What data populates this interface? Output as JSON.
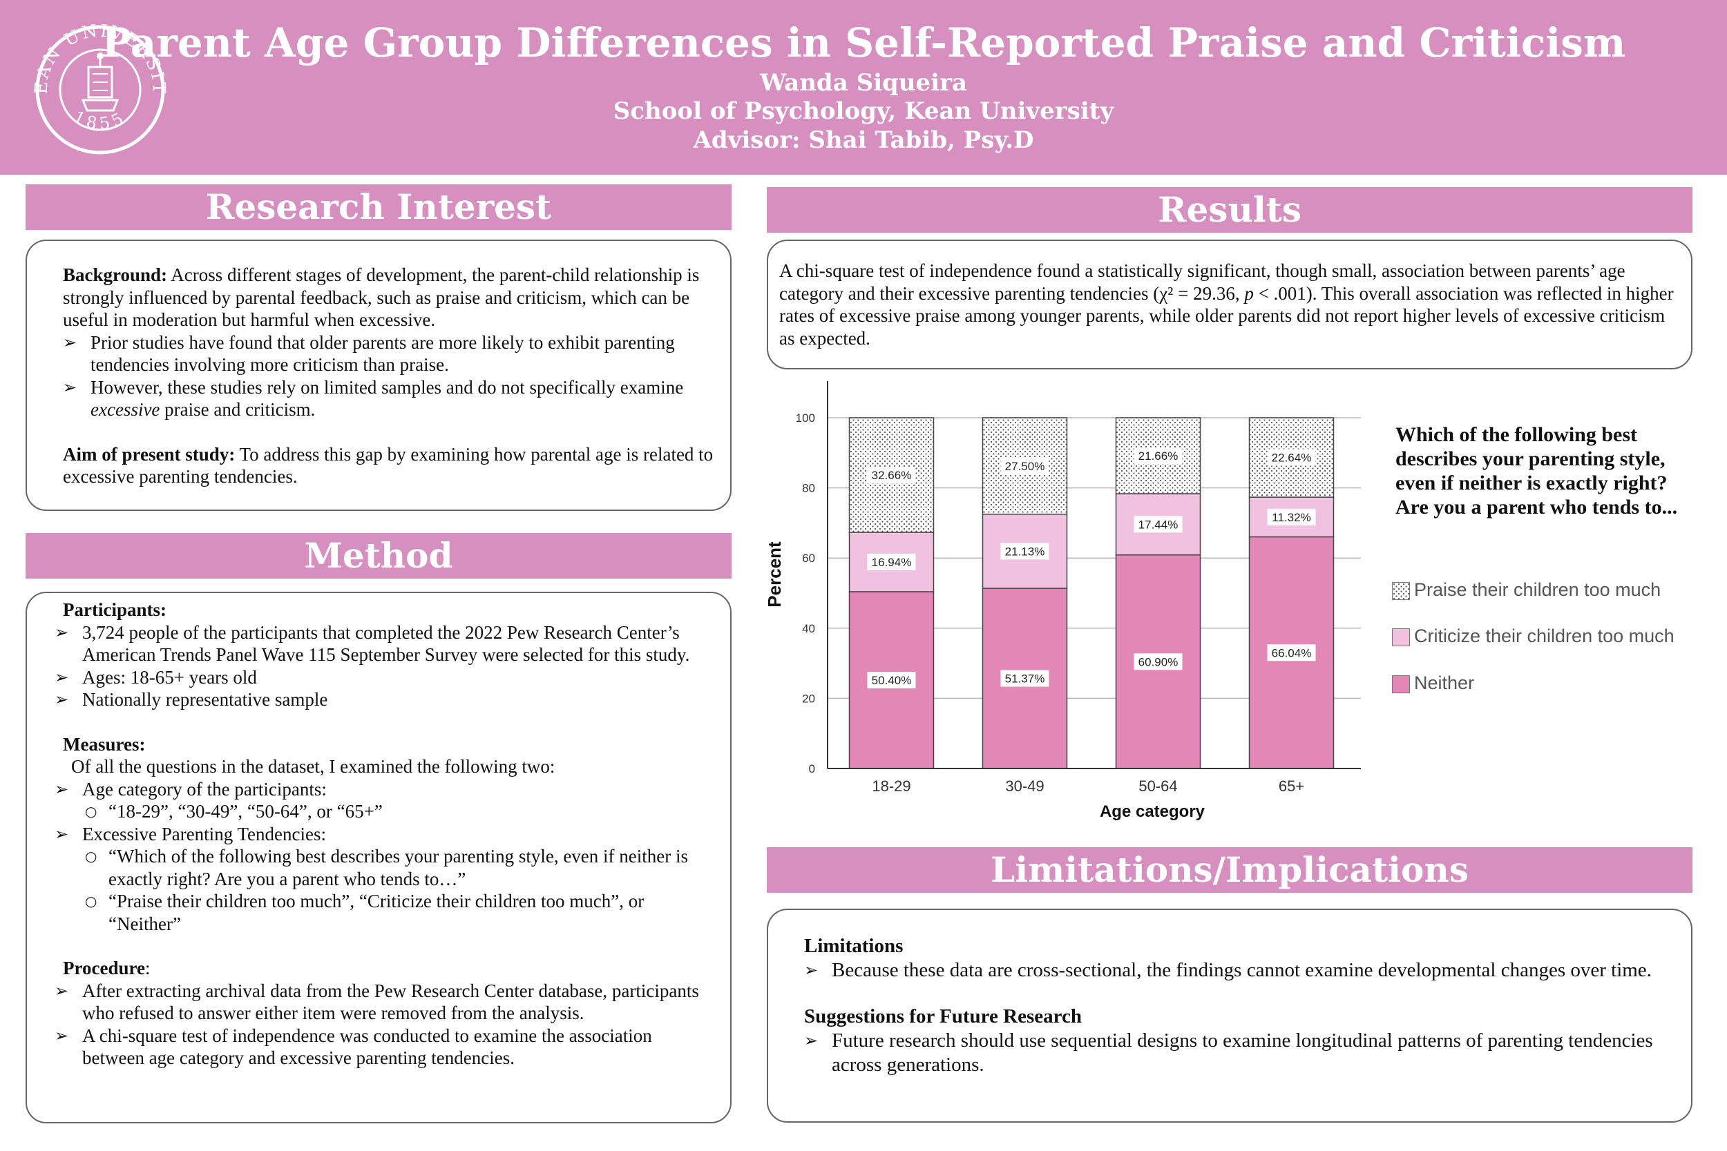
{
  "header": {
    "title": "Parent Age Group Differences in Self-Reported Praise and Criticism",
    "author": "Wanda Siqueira",
    "affiliation": "School of Psychology, Kean University",
    "advisor": "Advisor: Shai Tabib, Psy.D",
    "logo_text": "KEAN UNIVERSITY",
    "logo_year": "1855"
  },
  "research_interest": {
    "heading": "Research Interest",
    "background_label": "Background:",
    "background_text": " Across different stages of development, the parent-child relationship is strongly influenced by parental feedback, such as praise and criticism, which can be useful in moderation but harmful when excessive.",
    "bullet1": "Prior studies have found that older parents are more likely to exhibit parenting tendencies involving more criticism than praise.",
    "bullet2_pre": "However, these studies rely on limited samples and do not specifically examine ",
    "bullet2_em": "excessive",
    "bullet2_post": " praise and criticism.",
    "aim_label": "Aim of present study:",
    "aim_text": " To address this gap by examining how parental age is related to excessive parenting tendencies."
  },
  "method": {
    "heading": "Method",
    "participants_label": "Participants:",
    "p1": "3,724 people of the participants that completed the 2022 Pew Research Center’s American Trends Panel Wave 115 September Survey were selected for this study.",
    "p2": "Ages: 18-65+ years old",
    "p3": "Nationally representative sample",
    "measures_label": "Measures:",
    "measures_intro": "Of all the questions in the dataset, I examined the following two:",
    "m1": "Age category of the participants:",
    "m1a": "“18-29”, “30-49”, “50-64”, or “65+”",
    "m2": "Excessive Parenting Tendencies:",
    "m2a": "“Which of the following best describes your parenting style, even if neither is exactly right? Are you a parent who tends to…”",
    "m2b": "“Praise their children too much”, “Criticize their children too much”, or “Neither”",
    "procedure_label": "Procedure",
    "procedure_colon": ":",
    "pr1": "After extracting archival data from the Pew Research Center database, participants who refused to answer either item were removed from the analysis.",
    "pr2": "A chi-square test of independence was conducted to examine the association between age category and excessive parenting tendencies."
  },
  "results": {
    "heading": "Results",
    "text_pre": "A chi-square test of independence found a statistically significant, though small, association between parents’ age category and their excessive parenting tendencies (χ² = 29.36, ",
    "text_p": "p",
    "text_post": " < .001). This overall association was reflected in higher rates of excessive praise among younger parents, while older parents did not report higher levels of excessive criticism as expected."
  },
  "limitations": {
    "heading": "Limitations/Implications",
    "limitations_label": "Limitations",
    "l1": "Because these data are cross-sectional, the findings cannot examine developmental changes over time.",
    "future_label": "Suggestions for Future Research",
    "f1": "Future research should use sequential designs to examine longitudinal patterns of parenting tendencies across generations."
  },
  "chart_data": {
    "type": "bar",
    "stacked": true,
    "categories": [
      "18-29",
      "30-49",
      "50-64",
      "65+"
    ],
    "series": [
      {
        "name": "Neither",
        "values": [
          50.4,
          51.37,
          60.9,
          66.04
        ],
        "labels": [
          "50.40%",
          "51.37%",
          "60.90%",
          "66.04%"
        ],
        "color": "#e387b6",
        "pattern": "solid"
      },
      {
        "name": "Criticize their children too much",
        "values": [
          16.94,
          21.13,
          17.44,
          11.32
        ],
        "labels": [
          "16.94%",
          "21.13%",
          "17.44%",
          "11.32%"
        ],
        "color": "#f1c2e0",
        "pattern": "solid"
      },
      {
        "name": "Praise their children too much",
        "values": [
          32.66,
          27.5,
          21.66,
          22.64
        ],
        "labels": [
          "32.66%",
          "27.50%",
          "21.66%",
          "22.64%"
        ],
        "color": "#ffffff",
        "pattern": "dots"
      }
    ],
    "legend_title": "Which of the following best describes your parenting style, even if neither is exactly right? Are you a parent who tends to...",
    "xlabel": "Age category",
    "ylabel": "Percent",
    "ylim": [
      0,
      100
    ],
    "yticks": [
      0,
      20,
      40,
      60,
      80,
      100
    ],
    "grid": true,
    "legend_position": "right"
  }
}
